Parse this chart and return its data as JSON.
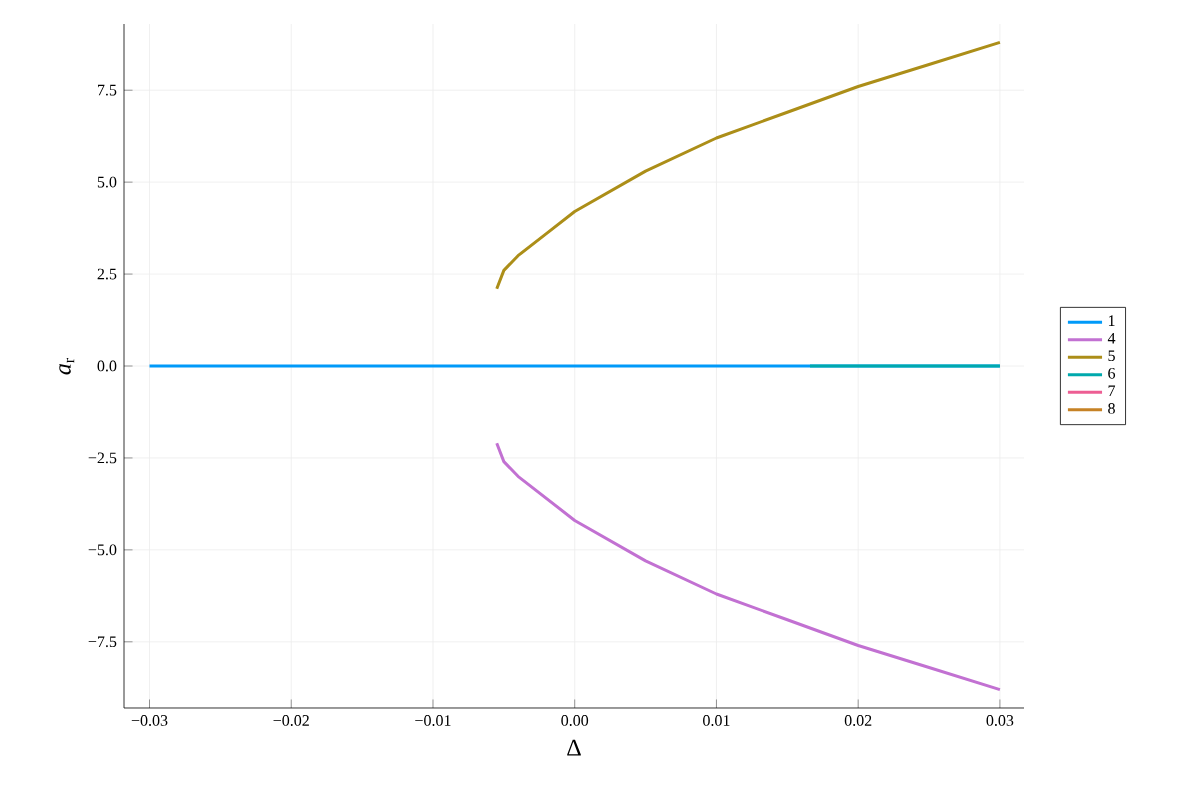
{
  "chart_data": {
    "type": "line",
    "xlabel": "Δ",
    "ylabel": "*a*$_{r}$",
    "xlim": [
      -0.0318,
      0.0317
    ],
    "ylim": [
      -9.3,
      9.3
    ],
    "xticks": [
      {
        "value": -0.03,
        "label": "−0.03"
      },
      {
        "value": -0.02,
        "label": "−0.02"
      },
      {
        "value": -0.01,
        "label": "−0.01"
      },
      {
        "value": 0,
        "label": "0.00"
      },
      {
        "value": 0.01,
        "label": "0.01"
      },
      {
        "value": 0.02,
        "label": "0.02"
      },
      {
        "value": 0.03,
        "label": "0.03"
      }
    ],
    "yticks": [
      {
        "value": -7.5,
        "label": "−7.5"
      },
      {
        "value": -5,
        "label": "−5.0"
      },
      {
        "value": -2.5,
        "label": "−2.5"
      },
      {
        "value": 0,
        "label": "0.0"
      },
      {
        "value": 2.5,
        "label": "2.5"
      },
      {
        "value": 5,
        "label": "5.0"
      },
      {
        "value": 7.5,
        "label": "7.5"
      }
    ],
    "grid": true,
    "legend": "right",
    "series": [
      {
        "name": "1",
        "color": "#009af9",
        "x": [
          -0.03,
          0.03
        ],
        "values": [
          0,
          0
        ]
      },
      {
        "name": "4",
        "color": "#c271d2",
        "x": [
          -0.0055,
          -0.005,
          -0.004,
          -0.002,
          0,
          0.005,
          0.01,
          0.015,
          0.02,
          0.025,
          0.03
        ],
        "values": [
          -2.1,
          -2.6,
          -3.0,
          -3.6,
          -4.2,
          -5.3,
          -6.2,
          -6.9,
          -7.6,
          -8.2,
          -8.8
        ]
      },
      {
        "name": "5",
        "color": "#ac8e18",
        "x": [
          -0.0055,
          -0.005,
          -0.004,
          -0.002,
          0,
          0.005,
          0.01,
          0.015,
          0.02,
          0.025,
          0.03
        ],
        "values": [
          2.1,
          2.6,
          3.0,
          3.6,
          4.2,
          5.3,
          6.2,
          6.9,
          7.6,
          8.2,
          8.8
        ]
      },
      {
        "name": "6",
        "color": "#00a9ad",
        "x": [
          0.0166,
          0.03
        ],
        "values": [
          0,
          0
        ]
      },
      {
        "name": "7",
        "color": "#ed5e93"
      },
      {
        "name": "8",
        "color": "#c68225"
      }
    ]
  }
}
